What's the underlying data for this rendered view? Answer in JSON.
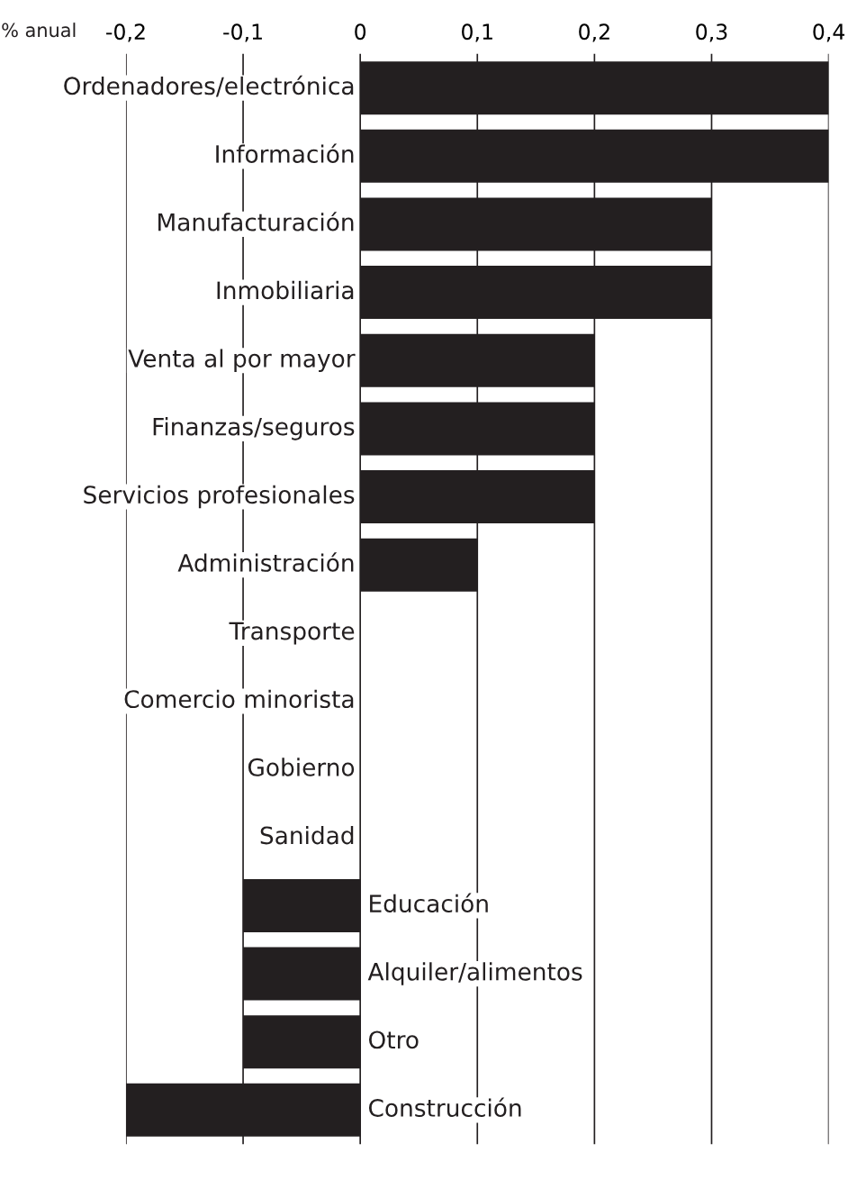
{
  "chart_data": {
    "type": "bar",
    "orientation": "horizontal",
    "xlabel": "% anual",
    "categories": [
      "Ordenadores/electrónica",
      "Información",
      "Manufacturación",
      "Inmobiliaria",
      "Venta al por mayor",
      "Finanzas/seguros",
      "Servicios profesionales",
      "Administración",
      "Transporte",
      "Comercio minorista",
      "Gobierno",
      "Sanidad",
      "Educación",
      "Alquiler/alimentos",
      "Otro",
      "Construcción"
    ],
    "values": [
      0.4,
      0.4,
      0.3,
      0.3,
      0.2,
      0.2,
      0.2,
      0.1,
      0,
      0,
      0,
      0,
      -0.1,
      -0.1,
      -0.1,
      -0.2
    ],
    "color": "#231f20",
    "xlim": [
      -0.2,
      0.4
    ],
    "xticks": [
      {
        "value": -0.2,
        "label": "-0,2"
      },
      {
        "value": -0.1,
        "label": "-0,1"
      },
      0,
      {
        "value": 0.1,
        "label": "0,1"
      },
      {
        "value": 0.2,
        "label": "0,2"
      },
      {
        "value": 0.3,
        "label": "0,3"
      },
      {
        "value": 0.4,
        "label": "0,4"
      }
    ],
    "grid": "x"
  }
}
